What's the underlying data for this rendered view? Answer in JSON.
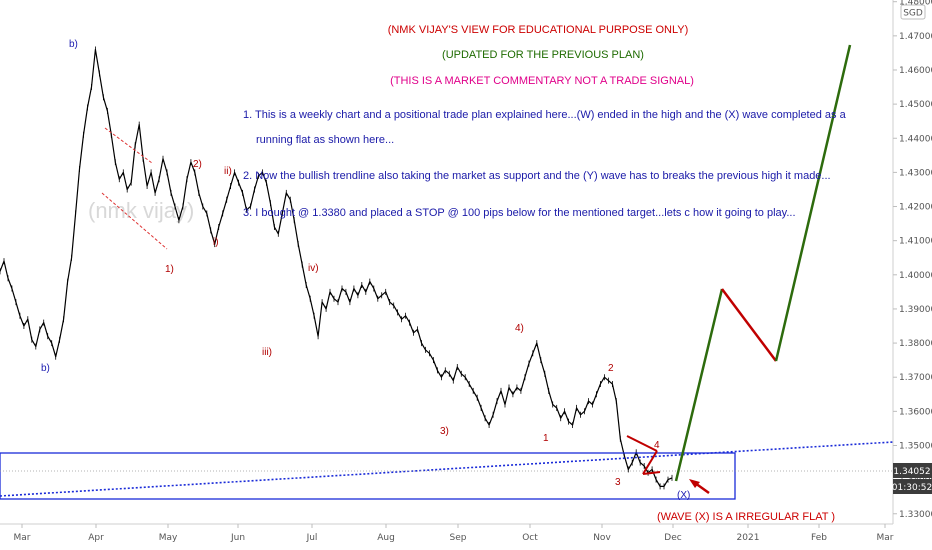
{
  "header": {
    "line1": "(NMK VIJAY'S VIEW FOR EDUCATIONAL PURPOSE ONLY)",
    "line2": "(UPDATED FOR THE PREVIOUS PLAN)",
    "line3": "(THIS IS A MARKET COMMENTARY NOT A TRADE SIGNAL)",
    "note1a": "1. This is a weekly chart and a positional trade plan explained here...(W) ended in the high and the (X) wave completed as a",
    "note1b": "running flat as shown here...",
    "note2": "2. Now the bullish trendline also taking the market as support and the (Y) wave has to breaks the previous high it made...",
    "note3": "3. I bought @ 1.3380 and placed a STOP @ 100 pips below for the mentioned target...lets c how it going to play...",
    "footer": "(WAVE (X) IS A IRREGULAR FLAT )",
    "watermark": "(nmk vijay)"
  },
  "price_axis": {
    "currency": "SGD",
    "current_price": "1.34052",
    "countdown": "01:30:52"
  },
  "colors": {
    "title_red": "#cc0000",
    "title_green": "#1e6b00",
    "title_magenta": "#e0008a",
    "note_blue": "#1a1aa8",
    "wave_blue": "#1a1ab0",
    "wave_red": "#b00000",
    "projection_green": "#2d6b0d",
    "projection_red": "#c00000",
    "trendline": "#1a2bd8",
    "box": "#1a2bd8",
    "candles": "#000000"
  },
  "chart_data": {
    "type": "line",
    "title": "",
    "xlabel": "",
    "ylabel": "",
    "x_ticks": [
      "Mar",
      "Apr",
      "May",
      "Jun",
      "Jul",
      "Aug",
      "Sep",
      "Oct",
      "Nov",
      "Dec",
      "2021",
      "Feb",
      "Mar"
    ],
    "y_ticks": [
      "1.48000",
      "1.47000",
      "1.46000",
      "1.45000",
      "1.44000",
      "1.43000",
      "1.42000",
      "1.41000",
      "1.40000",
      "1.39000",
      "1.38000",
      "1.37000",
      "1.36000",
      "1.35000",
      "1.34000",
      "1.33000"
    ],
    "ylim": [
      1.327,
      1.4805
    ],
    "series": [
      {
        "values": [
          1.401,
          1.404,
          1.399,
          1.396,
          1.392,
          1.388,
          1.385,
          1.387,
          1.381,
          1.379,
          1.384,
          1.386,
          1.382,
          1.38,
          1.376,
          1.381,
          1.387,
          1.398,
          1.405,
          1.418,
          1.431,
          1.441,
          1.449,
          1.455,
          1.466,
          1.459,
          1.452,
          1.448,
          1.441,
          1.433,
          1.428,
          1.43,
          1.425,
          1.427,
          1.438,
          1.444,
          1.434,
          1.426,
          1.43,
          1.424,
          1.428,
          1.434,
          1.43,
          1.424,
          1.42,
          1.416,
          1.42,
          1.428,
          1.433,
          1.43,
          1.424,
          1.42,
          1.418,
          1.413,
          1.409,
          1.414,
          1.418,
          1.422,
          1.426,
          1.43,
          1.427,
          1.424,
          1.419,
          1.42,
          1.425,
          1.429,
          1.43,
          1.427,
          1.421,
          1.414,
          1.412,
          1.418,
          1.424,
          1.422,
          1.416,
          1.409,
          1.403,
          1.397,
          1.393,
          1.388,
          1.382,
          1.392,
          1.39,
          1.395,
          1.393,
          1.392,
          1.396,
          1.395,
          1.392,
          1.396,
          1.394,
          1.397,
          1.395,
          1.398,
          1.396,
          1.393,
          1.394,
          1.395,
          1.392,
          1.391,
          1.389,
          1.387,
          1.388,
          1.386,
          1.383,
          1.384,
          1.38,
          1.378,
          1.377,
          1.375,
          1.372,
          1.37,
          1.372,
          1.371,
          1.369,
          1.373,
          1.371,
          1.37,
          1.368,
          1.366,
          1.364,
          1.361,
          1.358,
          1.356,
          1.359,
          1.363,
          1.366,
          1.362,
          1.367,
          1.365,
          1.367,
          1.366,
          1.37,
          1.374,
          1.377,
          1.38,
          1.375,
          1.371,
          1.366,
          1.362,
          1.361,
          1.358,
          1.36,
          1.357,
          1.356,
          1.361,
          1.359,
          1.36,
          1.363,
          1.362,
          1.365,
          1.368,
          1.37,
          1.369,
          1.368,
          1.363,
          1.352,
          1.347,
          1.343,
          1.345,
          1.348,
          1.345,
          1.344,
          1.342,
          1.343,
          1.34,
          1.338,
          1.338,
          1.34,
          1.3405
        ]
      }
    ]
  },
  "wave_labels": [
    {
      "text": "b)",
      "color": "blue"
    },
    {
      "text": "b)",
      "color": "blue"
    },
    {
      "text": "1)",
      "color": "red"
    },
    {
      "text": "2)",
      "color": "red"
    },
    {
      "text": "ii)",
      "color": "red"
    },
    {
      "text": "i)",
      "color": "red"
    },
    {
      "text": "iii)",
      "color": "red"
    },
    {
      "text": "iv)",
      "color": "red"
    },
    {
      "text": "3)",
      "color": "red"
    },
    {
      "text": "4)",
      "color": "red"
    },
    {
      "text": "1",
      "color": "red"
    },
    {
      "text": "2",
      "color": "red"
    },
    {
      "text": "3",
      "color": "red"
    },
    {
      "text": "4",
      "color": "red"
    },
    {
      "text": "(X)",
      "color": "blue"
    }
  ]
}
